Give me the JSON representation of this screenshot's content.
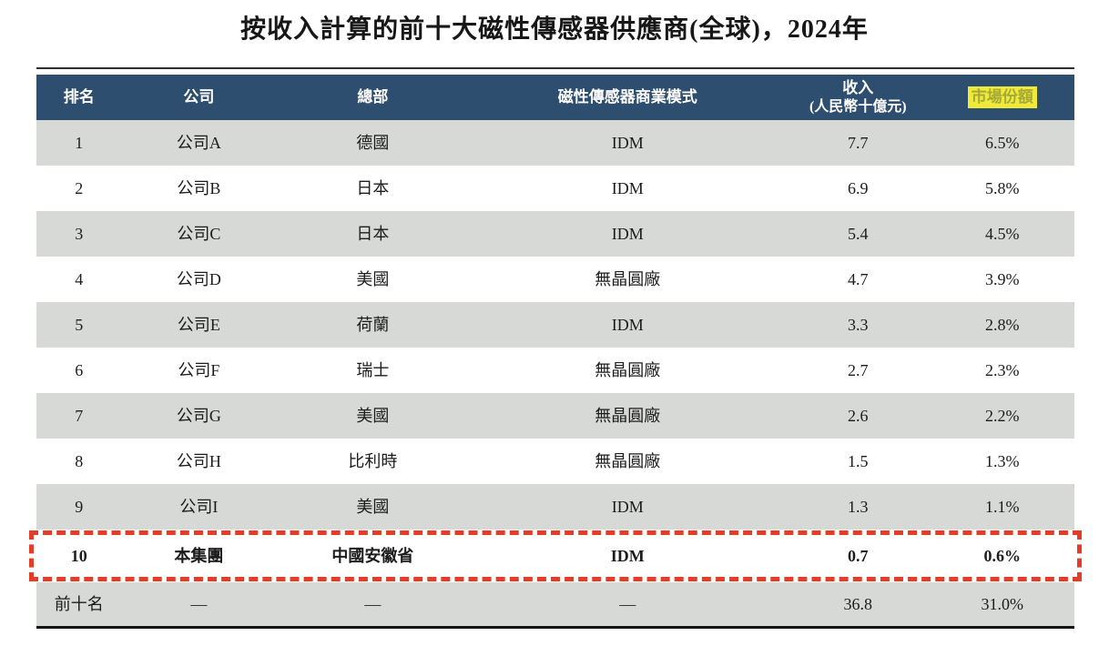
{
  "title": "按收入計算的前十大磁性傳感器供應商(全球)，2024年",
  "colors": {
    "header_bg": "#2d4e6f",
    "header_text": "#ffffff",
    "shaded_row_bg": "#d7d9d6",
    "highlight_bg": "#efe93a",
    "highlight_text": "#a6a938",
    "dashed_border": "#e53c28",
    "top_rule": "#2e2e2e",
    "bottom_rule": "#141414",
    "body_text": "#1c1c1c"
  },
  "table": {
    "headers": [
      {
        "label": "排名"
      },
      {
        "label": "公司"
      },
      {
        "label": "總部"
      },
      {
        "label": "磁性傳感器商業模式"
      },
      {
        "label": "收入",
        "sub": "(人民幣十億元)"
      },
      {
        "label": "市場份額",
        "highlighted": true
      }
    ],
    "rows": [
      {
        "rank": "1",
        "company": "公司A",
        "hq": "德國",
        "model": "IDM",
        "revenue": "7.7",
        "share": "6.5%"
      },
      {
        "rank": "2",
        "company": "公司B",
        "hq": "日本",
        "model": "IDM",
        "revenue": "6.9",
        "share": "5.8%"
      },
      {
        "rank": "3",
        "company": "公司C",
        "hq": "日本",
        "model": "IDM",
        "revenue": "5.4",
        "share": "4.5%"
      },
      {
        "rank": "4",
        "company": "公司D",
        "hq": "美國",
        "model": "無晶圓廠",
        "revenue": "4.7",
        "share": "3.9%"
      },
      {
        "rank": "5",
        "company": "公司E",
        "hq": "荷蘭",
        "model": "IDM",
        "revenue": "3.3",
        "share": "2.8%"
      },
      {
        "rank": "6",
        "company": "公司F",
        "hq": "瑞士",
        "model": "無晶圓廠",
        "revenue": "2.7",
        "share": "2.3%"
      },
      {
        "rank": "7",
        "company": "公司G",
        "hq": "美國",
        "model": "無晶圓廠",
        "revenue": "2.6",
        "share": "2.2%"
      },
      {
        "rank": "8",
        "company": "公司H",
        "hq": "比利時",
        "model": "無晶圓廠",
        "revenue": "1.5",
        "share": "1.3%"
      },
      {
        "rank": "9",
        "company": "公司I",
        "hq": "美國",
        "model": "IDM",
        "revenue": "1.3",
        "share": "1.1%"
      },
      {
        "rank": "10",
        "company": "本集團",
        "hq": "中國安徽省",
        "model": "IDM",
        "revenue": "0.7",
        "share": "0.6%",
        "emphasized": true
      },
      {
        "rank": "前十名",
        "company": "—",
        "hq": "—",
        "model": "—",
        "revenue": "36.8",
        "share": "31.0%",
        "total": true
      }
    ]
  }
}
